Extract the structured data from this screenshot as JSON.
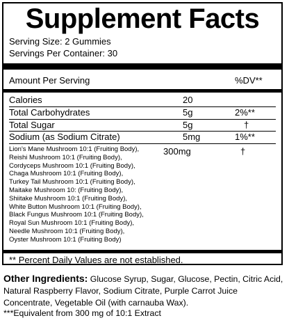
{
  "title": "Supplement Facts",
  "serving_size": "Serving Size: 2 Gummies",
  "servings_per_container": "Servings Per Container: 30",
  "header": {
    "amount_per_serving": "Amount Per Serving",
    "dv": "%DV**"
  },
  "nutrients": [
    {
      "name": "Calories",
      "amount": "20",
      "dv": ""
    },
    {
      "name": "Total Carbohydrates",
      "amount": "5g",
      "dv": "2%**"
    },
    {
      "name": "Total Sugar",
      "amount": "5g",
      "dv": "†"
    },
    {
      "name": "Sodium (as Sodium Citrate)",
      "amount": "5mg",
      "dv": "1%**"
    }
  ],
  "blend": {
    "ingredients": [
      "Lion's Mane Mushroom 10:1 (Fruiting Body),",
      "Reishi Mushroom 10:1 (Fruiting Body),",
      "Cordyceps Mushroom 10:1 (Fruiting Body),",
      "Chaga Mushroom 10:1 (Fruiting Body),",
      "Turkey Tail Mushroom 10:1 (Fruiting Body),",
      "Maitake Mushroom 10: (Fruiting Body),",
      "Shiitake Mushroom 10:1 (Fruiting Body),",
      "White Button Mushroom 10:1 (Fruiting Body),",
      "Black Fungus Mushroom 10:1 (Fruiting Body),",
      "Royal Sun Mushroom 10:1 (Fruiting Body),",
      "Needle Mushroom 10:1 (Fruiting Body),",
      "Oyster Mushroom 10:1 (Fruiting Body)"
    ],
    "amount": "300mg",
    "dv": "†"
  },
  "footnote": "** Percent Daily Values are not established.",
  "other_label": "Other Ingredients:",
  "other_text": " Glucose Syrup, Sugar, Glucose, Pectin, Citric Acid, Natural Raspberry Flavor, Sodium Citrate, Purple Carrot Juice Concentrate, Vegetable Oil (with carnauba Wax).",
  "extract_note": "***Equivalent from 300 mg of 10:1 Extract"
}
